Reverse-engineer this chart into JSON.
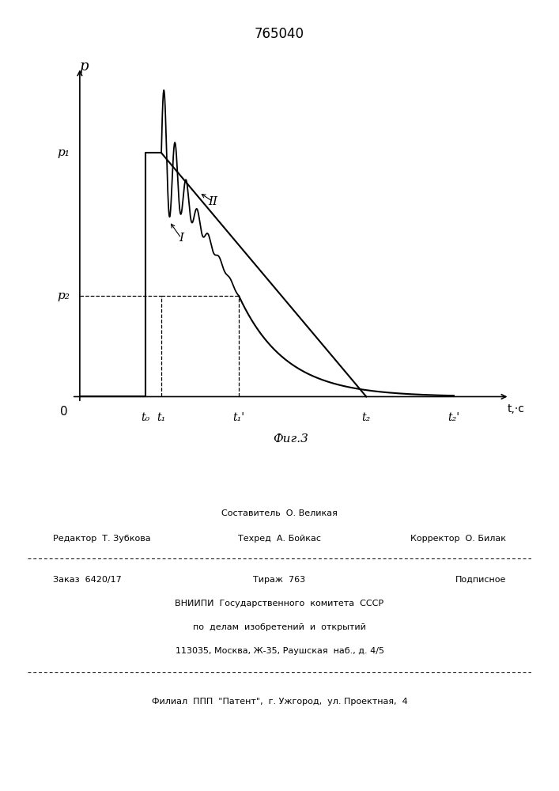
{
  "title": "765040",
  "fig_label": "Фиг.3",
  "p_label": "p",
  "t_label": "t,·c",
  "p1_label": "p₁",
  "p2_label": "p₂",
  "t0_label": "t₀",
  "t1_label": "t₁",
  "t1p_label": "t₁'",
  "t2_label": "t₂",
  "t2p_label": "t₂'",
  "zero_label": "0",
  "curve1_label": "I",
  "curve2_label": "II",
  "background_color": "#ffffff",
  "line_color": "#000000",
  "t0": 0.165,
  "t1": 0.205,
  "t1p": 0.4,
  "t2": 0.72,
  "t2p": 0.94,
  "p1": 0.8,
  "p2": 0.33,
  "footer_line1_left": "Редактор  Т. Зубкова",
  "footer_line1_center_top": "Составитель  О. Великая",
  "footer_line1_center_bot": "Техред  А. Бойкас",
  "footer_line1_right": "Корректор  О. Билак",
  "footer_line2_left": "Заказ  6420/17",
  "footer_line2_center": "Тираж  763",
  "footer_line2_right": "Подписное",
  "footer_line3": "ВНИИПИ  Государственного  комитета  СССР",
  "footer_line4": "по  делам  изобретений  и  открытий",
  "footer_line5": "113035, Москва, Ж-35, Раушская  наб., д. 4/5",
  "footer_last": "Филиал  ППП  \"Патент\",  г. Ужгород,  ул. Проектная,  4"
}
